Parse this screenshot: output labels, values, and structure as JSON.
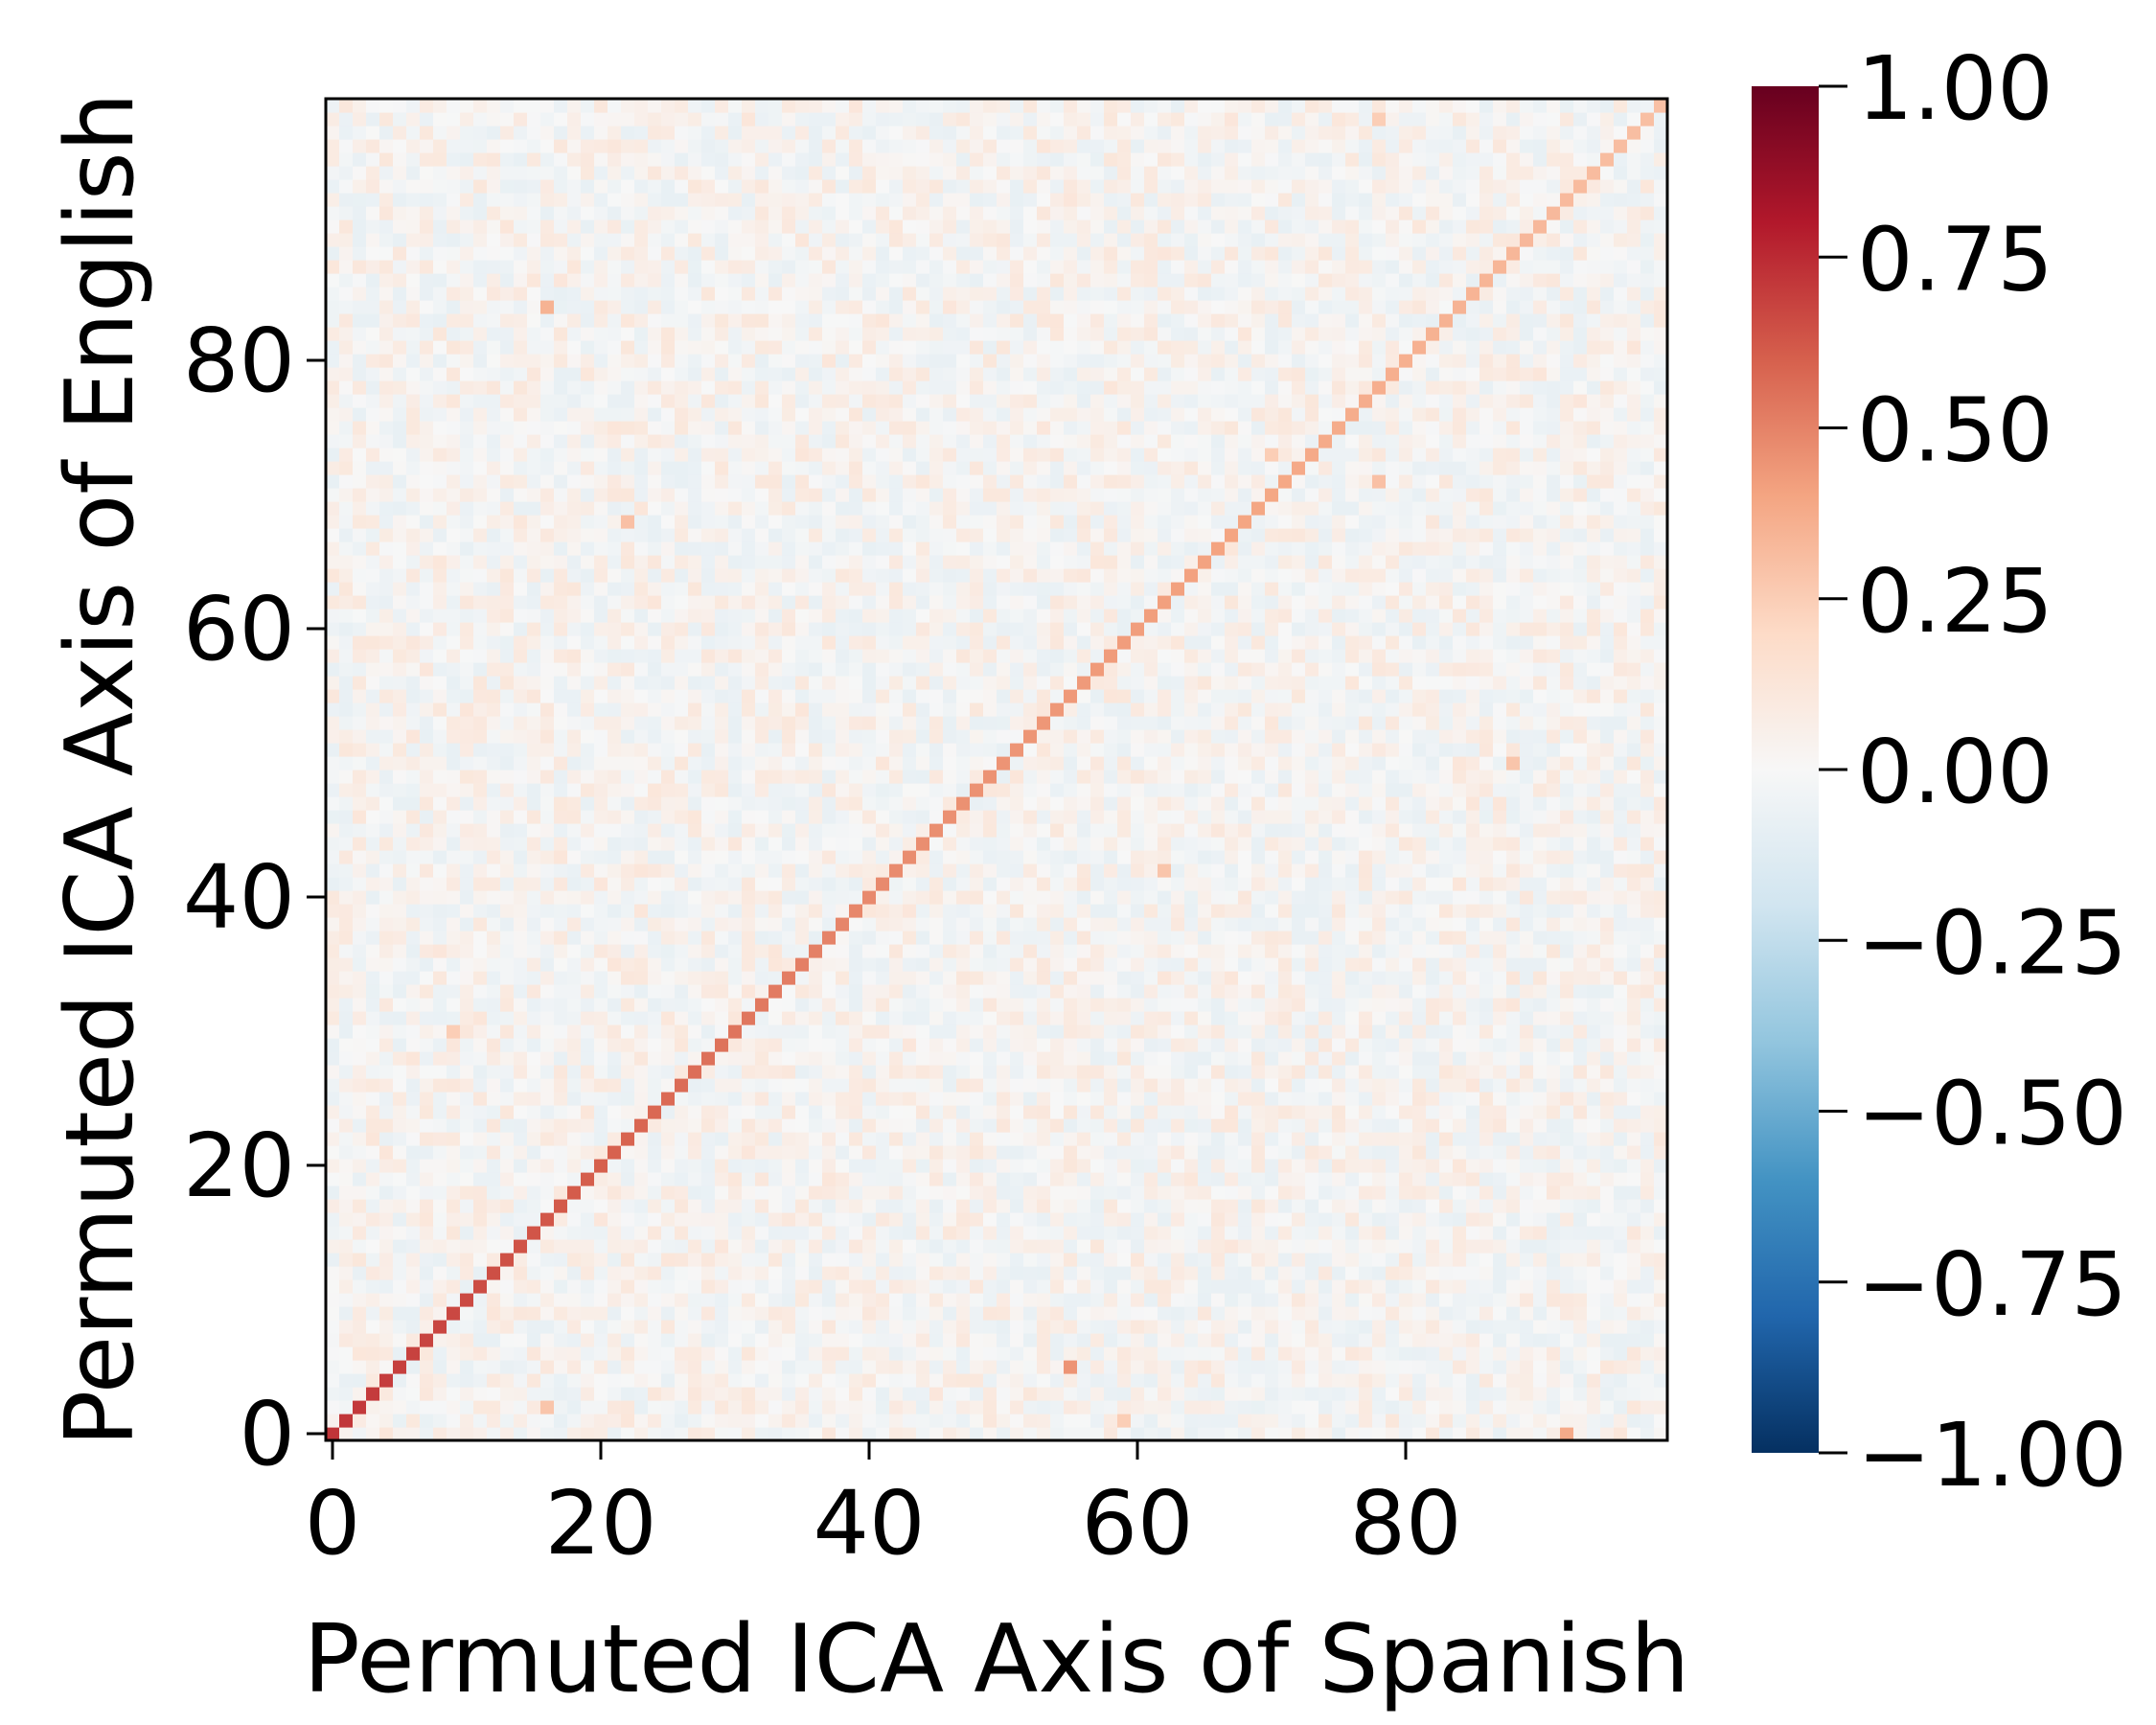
{
  "chart_data": {
    "type": "heatmap",
    "xlabel": "Permuted ICA Axis of Spanish",
    "ylabel": "Permuted ICA Axis of English",
    "size": 100,
    "xlim": [
      0,
      99
    ],
    "ylim": [
      0,
      99
    ],
    "x_ticks": [
      0,
      20,
      40,
      60,
      80
    ],
    "y_ticks": [
      0,
      20,
      40,
      60,
      80
    ],
    "x_tick_labels": [
      "0",
      "20",
      "40",
      "60",
      "80"
    ],
    "y_tick_labels": [
      "0",
      "20",
      "40",
      "60",
      "80"
    ],
    "origin": "bottom-left",
    "colormap": "RdBu_r",
    "colorbar": {
      "range": [
        -1.0,
        1.0
      ],
      "ticks": [
        1.0,
        0.75,
        0.5,
        0.25,
        0.0,
        -0.25,
        -0.5,
        -0.75,
        -1.0
      ],
      "tick_labels": [
        "1.00",
        "0.75",
        "0.50",
        "0.25",
        "0.00",
        "−0.25",
        "−0.50",
        "−0.75",
        "−1.00"
      ]
    },
    "diagonal": {
      "description_values": [
        {
          "index": 0,
          "value": 0.72
        },
        {
          "index": 20,
          "value": 0.6
        },
        {
          "index": 40,
          "value": 0.48
        },
        {
          "index": 60,
          "value": 0.42
        },
        {
          "index": 80,
          "value": 0.36
        },
        {
          "index": 99,
          "value": 0.3
        }
      ]
    },
    "highlighted_cells": [
      {
        "x": 16,
        "y": 84,
        "value": 0.35
      },
      {
        "x": 22,
        "y": 68,
        "value": 0.3
      },
      {
        "x": 9,
        "y": 30,
        "value": 0.25
      },
      {
        "x": 55,
        "y": 5,
        "value": 0.45
      },
      {
        "x": 78,
        "y": 71,
        "value": 0.3
      },
      {
        "x": 70,
        "y": 73,
        "value": 0.25
      },
      {
        "x": 62,
        "y": 42,
        "value": 0.28
      },
      {
        "x": 88,
        "y": 50,
        "value": 0.28
      },
      {
        "x": 92,
        "y": 0,
        "value": 0.38
      },
      {
        "x": 16,
        "y": 2,
        "value": 0.28
      },
      {
        "x": 59,
        "y": 1,
        "value": 0.25
      },
      {
        "x": 78,
        "y": 98,
        "value": 0.25
      }
    ],
    "off_diagonal_range": [
      -0.08,
      0.12
    ]
  },
  "colors": {
    "frame": "#000000",
    "background": "#ffffff"
  }
}
